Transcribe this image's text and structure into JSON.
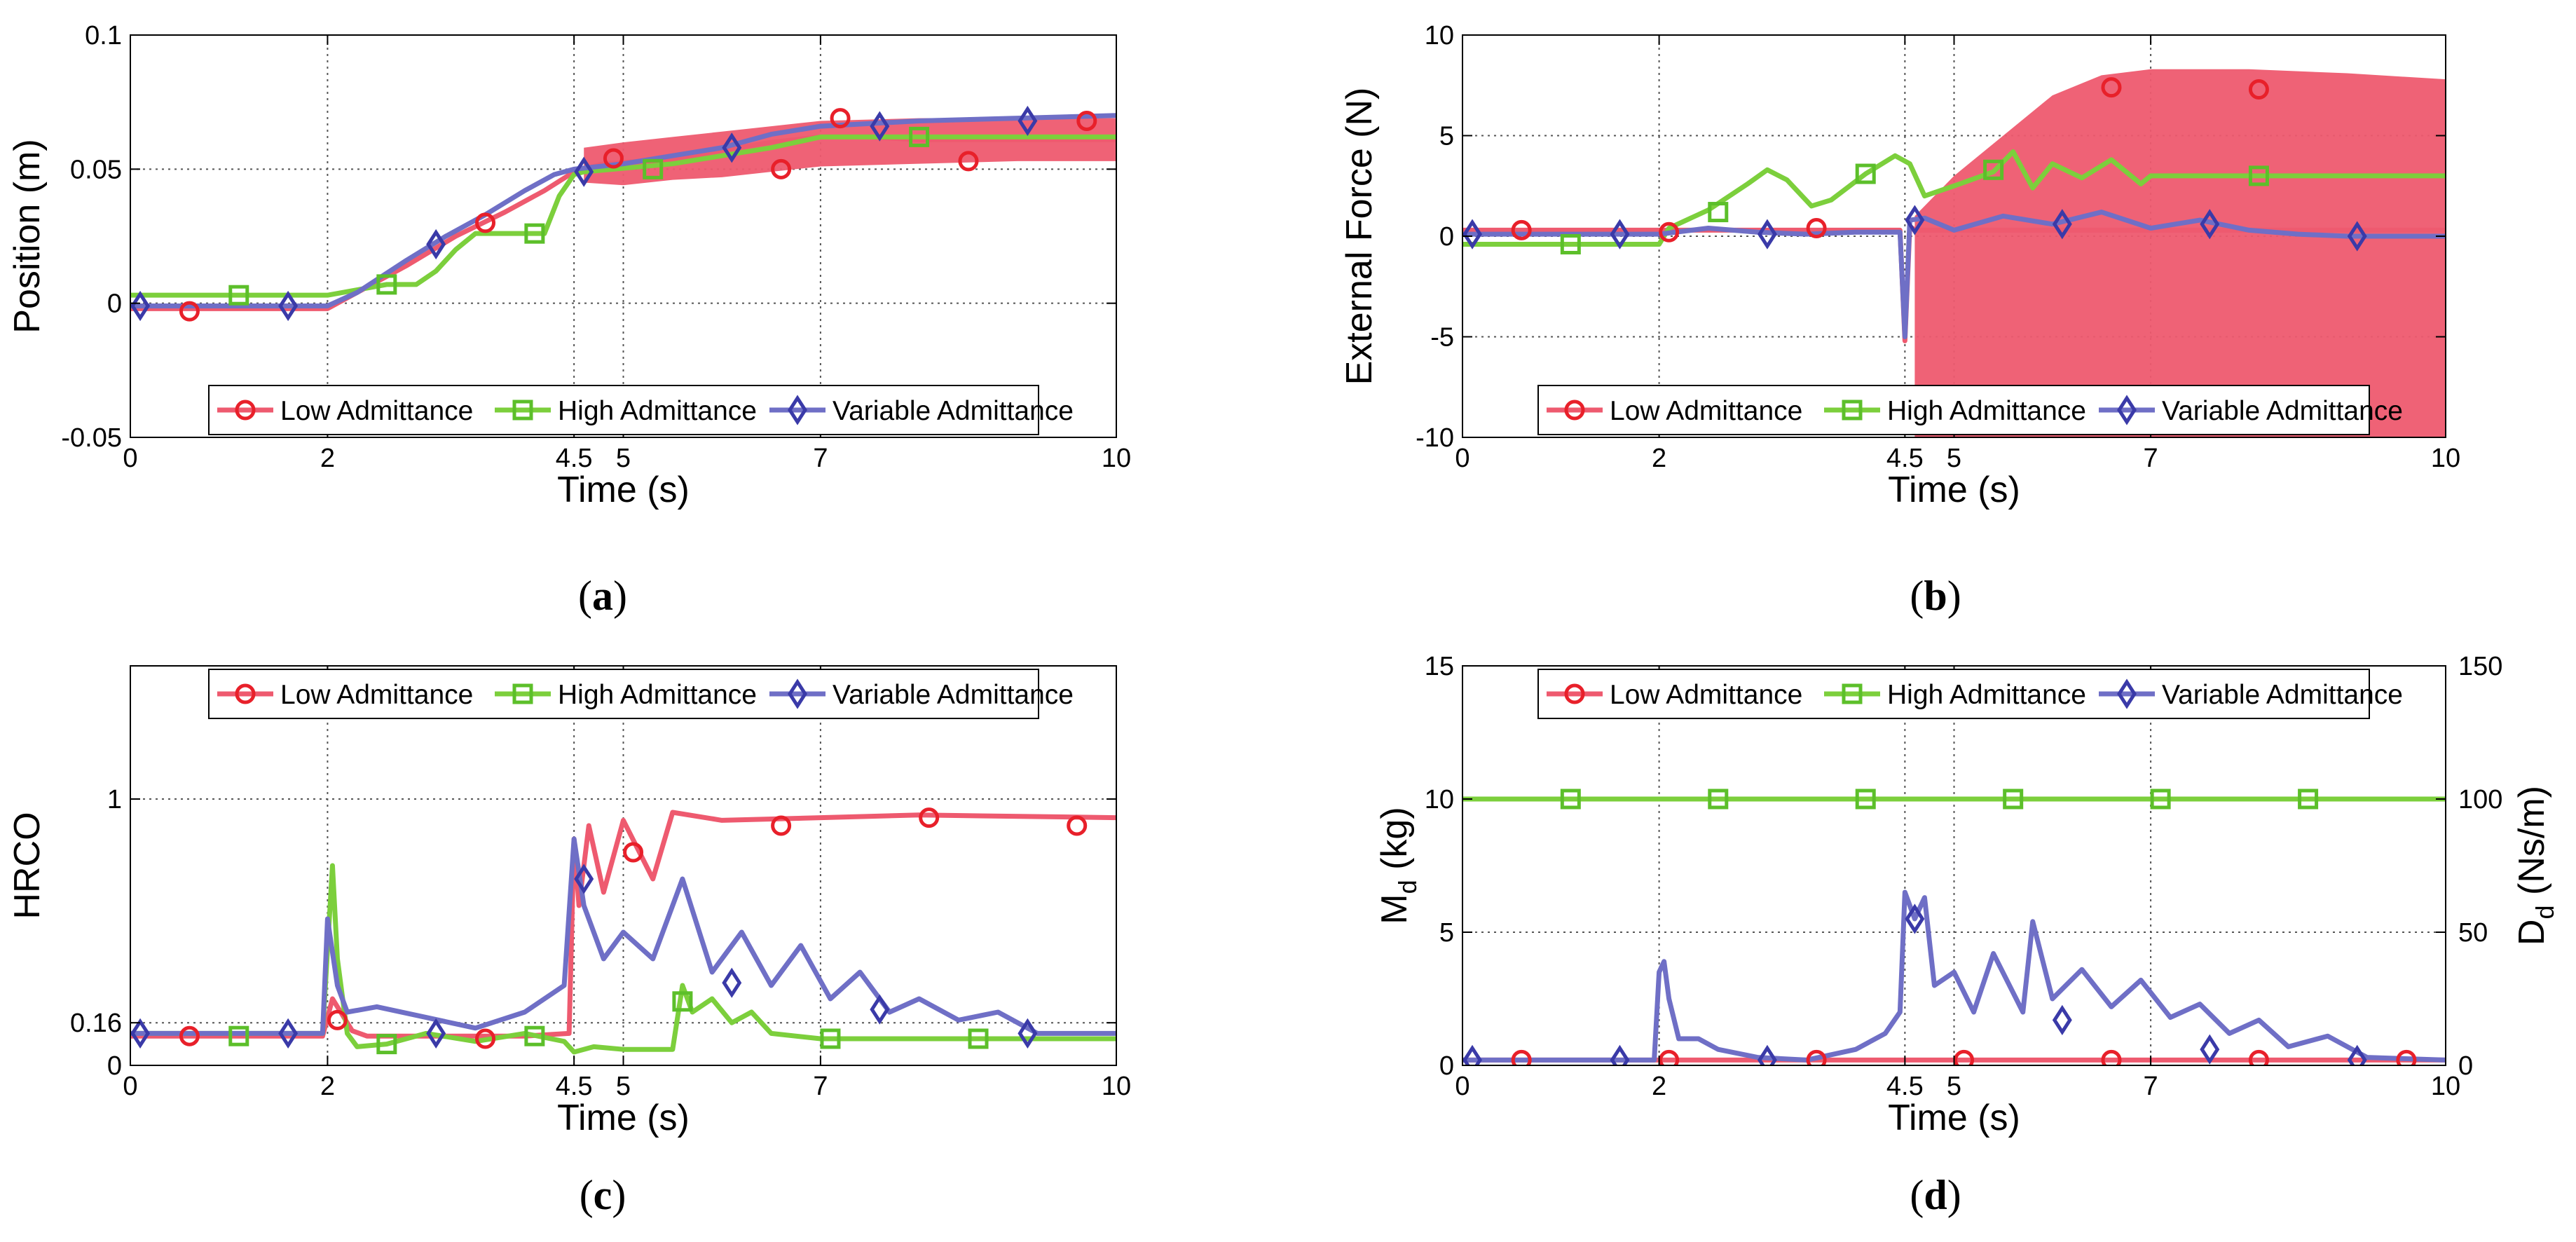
{
  "colors": {
    "low": "#ee5a6f",
    "low_marker": "#e8202a",
    "high": "#7ccf3c",
    "high_marker": "#5cbf2a",
    "variable": "#6f6fc6",
    "variable_marker": "#3a3aa8"
  },
  "chart_data": [
    {
      "id": "a",
      "caption_letter": "a",
      "type": "line",
      "xlabel": "Time (s)",
      "ylabel": "Position (m)",
      "xlim": [
        0,
        10
      ],
      "ylim": [
        -0.05,
        0.1
      ],
      "xticks": [
        0,
        2,
        4.5,
        5,
        7,
        10
      ],
      "xtick_labels": [
        "0",
        "2",
        "4.5",
        "5",
        "7",
        "10"
      ],
      "yticks": [
        -0.05,
        0,
        0.05,
        0.1
      ],
      "ytick_labels": [
        "-0.05",
        "0",
        "0.05",
        "0.1"
      ],
      "grid": true,
      "legend_position": "bottom",
      "series": [
        {
          "name": "Low Admittance",
          "key": "low",
          "marker": "circle",
          "x": [
            0,
            2,
            2.3,
            2.8,
            3.3,
            3.8,
            4.2,
            4.5,
            4.8,
            5.2,
            5.6,
            6.0,
            6.5,
            7.0,
            7.5,
            8.0,
            9.0,
            10
          ],
          "y": [
            -0.002,
            -0.002,
            0.004,
            0.014,
            0.025,
            0.034,
            0.042,
            0.049,
            0.052,
            0.053,
            0.054,
            0.057,
            0.06,
            0.062,
            0.062,
            0.061,
            0.061,
            0.061
          ],
          "band": [
            [
              4.6,
              0.045,
              0.058
            ],
            [
              5.0,
              0.044,
              0.06
            ],
            [
              5.5,
              0.046,
              0.062
            ],
            [
              6.0,
              0.047,
              0.064
            ],
            [
              6.5,
              0.049,
              0.066
            ],
            [
              7.0,
              0.051,
              0.068
            ],
            [
              8.0,
              0.052,
              0.069
            ],
            [
              9.0,
              0.053,
              0.069
            ],
            [
              10,
              0.053,
              0.069
            ]
          ],
          "markers_x": [
            0.6,
            3.6,
            4.9,
            6.6,
            7.2,
            8.5,
            9.7
          ],
          "markers_y": [
            -0.003,
            0.03,
            0.054,
            0.05,
            0.069,
            0.053,
            0.068
          ]
        },
        {
          "name": "High Admittance",
          "key": "high",
          "marker": "square",
          "x": [
            0,
            2,
            2.3,
            2.6,
            2.9,
            3.1,
            3.3,
            3.5,
            4.0,
            4.2,
            4.35,
            4.5,
            4.6,
            4.9,
            5.5,
            6.0,
            6.5,
            7.0,
            8.0,
            10
          ],
          "y": [
            0.003,
            0.003,
            0.005,
            0.007,
            0.007,
            0.012,
            0.02,
            0.026,
            0.026,
            0.026,
            0.04,
            0.048,
            0.049,
            0.05,
            0.052,
            0.055,
            0.058,
            0.062,
            0.062,
            0.062
          ],
          "markers_x": [
            1.1,
            2.6,
            4.1,
            5.3,
            8.0
          ],
          "markers_y": [
            0.003,
            0.007,
            0.026,
            0.05,
            0.062
          ]
        },
        {
          "name": "Variable Admittance",
          "key": "variable",
          "marker": "diamond",
          "x": [
            0,
            2,
            2.3,
            2.8,
            3.2,
            3.6,
            4.0,
            4.3,
            4.5,
            5.0,
            5.5,
            6.0,
            6.5,
            7.0,
            8.0,
            9.0,
            10
          ],
          "y": [
            -0.001,
            -0.001,
            0.004,
            0.016,
            0.025,
            0.033,
            0.042,
            0.048,
            0.05,
            0.052,
            0.055,
            0.058,
            0.063,
            0.066,
            0.068,
            0.069,
            0.07
          ],
          "markers_x": [
            0.1,
            1.6,
            3.1,
            4.6,
            6.1,
            7.6,
            9.1
          ],
          "markers_y": [
            -0.001,
            -0.001,
            0.022,
            0.049,
            0.058,
            0.066,
            0.068
          ]
        }
      ]
    },
    {
      "id": "b",
      "caption_letter": "b",
      "type": "line",
      "xlabel": "Time (s)",
      "ylabel": "External Force (N)",
      "xlim": [
        0,
        10
      ],
      "ylim": [
        -10,
        10
      ],
      "xticks": [
        0,
        2,
        4.5,
        5,
        7,
        10
      ],
      "xtick_labels": [
        "0",
        "2",
        "4.5",
        "5",
        "7",
        "10"
      ],
      "yticks": [
        -10,
        -5,
        0,
        5,
        10
      ],
      "ytick_labels": [
        "-10",
        "-5",
        "0",
        "5",
        "10"
      ],
      "grid": true,
      "legend_position": "bottom",
      "series": [
        {
          "name": "Low Admittance",
          "key": "low",
          "marker": "circle",
          "x": [
            0,
            2,
            4.45,
            4.5,
            4.55,
            4.6,
            10
          ],
          "y": [
            0.3,
            0.3,
            0.3,
            -5.2,
            0.5,
            0.3,
            0.3
          ],
          "band": [
            [
              4.6,
              -10,
              1.0
            ],
            [
              5.0,
              -10,
              3.0
            ],
            [
              5.5,
              -10,
              5.0
            ],
            [
              6.0,
              -10,
              7.0
            ],
            [
              6.5,
              -10,
              8.0
            ],
            [
              7.0,
              -10,
              8.3
            ],
            [
              8.0,
              -10,
              8.3
            ],
            [
              9.0,
              -10,
              8.1
            ],
            [
              10,
              -10,
              7.8
            ]
          ],
          "markers_x": [
            0.6,
            2.1,
            3.6,
            6.6,
            8.1
          ],
          "markers_y": [
            0.3,
            0.2,
            0.4,
            7.4,
            7.3
          ]
        },
        {
          "name": "High Admittance",
          "key": "high",
          "marker": "square",
          "x": [
            0,
            2,
            2.1,
            2.5,
            2.9,
            3.1,
            3.3,
            3.55,
            3.75,
            4.1,
            4.4,
            4.55,
            4.7,
            5.0,
            5.4,
            5.6,
            5.8,
            6.0,
            6.3,
            6.6,
            6.9,
            7.0,
            10
          ],
          "y": [
            -0.4,
            -0.4,
            0.4,
            1.3,
            2.6,
            3.3,
            2.8,
            1.5,
            1.8,
            3.1,
            4.0,
            3.6,
            2.0,
            2.5,
            3.2,
            4.2,
            2.4,
            3.6,
            2.9,
            3.8,
            2.6,
            3.0,
            3.0
          ],
          "markers_x": [
            1.1,
            2.6,
            4.1,
            5.4,
            8.1
          ],
          "markers_y": [
            -0.4,
            1.2,
            3.1,
            3.3,
            3.0
          ]
        },
        {
          "name": "Variable Admittance",
          "key": "variable",
          "marker": "diamond",
          "x": [
            0,
            2,
            2.5,
            3.0,
            3.5,
            4.0,
            4.45,
            4.5,
            4.55,
            4.7,
            5.0,
            5.5,
            6.0,
            6.5,
            7.0,
            7.5,
            8.0,
            8.5,
            9.0,
            10
          ],
          "y": [
            0.1,
            0.1,
            0.4,
            0.2,
            0.1,
            0.2,
            0.2,
            -5.0,
            0.8,
            0.9,
            0.3,
            1.0,
            0.6,
            1.2,
            0.4,
            0.8,
            0.3,
            0.1,
            0.0,
            0.0
          ],
          "markers_x": [
            0.1,
            1.6,
            3.1,
            4.6,
            6.1,
            7.6,
            9.1
          ],
          "markers_y": [
            0.1,
            0.1,
            0.1,
            0.8,
            0.6,
            0.6,
            0.0
          ]
        }
      ]
    },
    {
      "id": "c",
      "caption_letter": "c",
      "type": "line",
      "xlabel": "Time (s)",
      "ylabel": "HRCO",
      "xlim": [
        0,
        10
      ],
      "ylim": [
        0,
        1.5
      ],
      "xticks": [
        0,
        2,
        4.5,
        5,
        7,
        10
      ],
      "xtick_labels": [
        "0",
        "2",
        "4.5",
        "5",
        "7",
        "10"
      ],
      "yticks": [
        0,
        0.16,
        1
      ],
      "ytick_labels": [
        "0",
        "0.16",
        "1"
      ],
      "grid": true,
      "legend_position": "top",
      "series": [
        {
          "name": "Low Admittance",
          "key": "low",
          "marker": "circle",
          "x": [
            0,
            1.95,
            2.05,
            2.15,
            2.25,
            2.4,
            3.0,
            3.5,
            4.0,
            4.45,
            4.5,
            4.55,
            4.65,
            4.8,
            5.0,
            5.3,
            5.5,
            6.0,
            7.0,
            8.0,
            10
          ],
          "y": [
            0.11,
            0.11,
            0.25,
            0.19,
            0.13,
            0.11,
            0.11,
            0.11,
            0.11,
            0.12,
            0.85,
            0.6,
            0.9,
            0.65,
            0.92,
            0.7,
            0.95,
            0.92,
            0.93,
            0.94,
            0.93
          ],
          "markers_x": [
            0.6,
            2.1,
            3.6,
            5.1,
            6.6,
            8.1,
            9.6
          ],
          "markers_y": [
            0.11,
            0.17,
            0.1,
            0.8,
            0.9,
            0.93,
            0.9
          ]
        },
        {
          "name": "High Admittance",
          "key": "high",
          "marker": "square",
          "x": [
            0,
            1.95,
            2.05,
            2.1,
            2.2,
            2.3,
            2.6,
            3.0,
            3.5,
            4.0,
            4.4,
            4.5,
            4.7,
            5.0,
            5.5,
            5.6,
            5.7,
            5.9,
            6.1,
            6.3,
            6.5,
            7.0,
            7.5,
            8.0,
            10
          ],
          "y": [
            0.12,
            0.12,
            0.75,
            0.4,
            0.12,
            0.07,
            0.08,
            0.12,
            0.09,
            0.12,
            0.09,
            0.05,
            0.07,
            0.06,
            0.06,
            0.3,
            0.2,
            0.25,
            0.16,
            0.2,
            0.12,
            0.1,
            0.1,
            0.1,
            0.1
          ],
          "markers_x": [
            1.1,
            2.6,
            4.1,
            5.6,
            7.1,
            8.6
          ],
          "markers_y": [
            0.11,
            0.08,
            0.11,
            0.24,
            0.1,
            0.1
          ]
        },
        {
          "name": "Variable Admittance",
          "key": "variable",
          "marker": "diamond",
          "x": [
            0,
            1.95,
            2.0,
            2.1,
            2.2,
            2.5,
            3.0,
            3.5,
            4.0,
            4.4,
            4.5,
            4.6,
            4.8,
            5.0,
            5.3,
            5.6,
            5.9,
            6.2,
            6.5,
            6.8,
            7.1,
            7.4,
            7.7,
            8.0,
            8.4,
            8.8,
            9.2,
            10
          ],
          "y": [
            0.12,
            0.12,
            0.55,
            0.3,
            0.2,
            0.22,
            0.18,
            0.14,
            0.2,
            0.3,
            0.85,
            0.6,
            0.4,
            0.5,
            0.4,
            0.7,
            0.35,
            0.5,
            0.3,
            0.45,
            0.25,
            0.35,
            0.2,
            0.25,
            0.17,
            0.2,
            0.12,
            0.12
          ],
          "markers_x": [
            0.1,
            1.6,
            3.1,
            4.6,
            6.1,
            7.6,
            9.1
          ],
          "markers_y": [
            0.12,
            0.12,
            0.12,
            0.7,
            0.31,
            0.21,
            0.12
          ]
        }
      ]
    },
    {
      "id": "d",
      "caption_letter": "d",
      "type": "line",
      "xlabel": "Time (s)",
      "ylabel_main": "M",
      "ylabel_sub": "d",
      "ylabel_unit": " (kg)",
      "ylabel_right_main": "D",
      "ylabel_right_sub": "d",
      "ylabel_right_unit": " (Ns/m)",
      "xlim": [
        0,
        10
      ],
      "ylim": [
        0,
        15
      ],
      "ylim_right": [
        0,
        150
      ],
      "xticks": [
        0,
        2,
        4.5,
        5,
        7,
        10
      ],
      "xtick_labels": [
        "0",
        "2",
        "4.5",
        "5",
        "7",
        "10"
      ],
      "yticks": [
        0,
        5,
        10,
        15
      ],
      "ytick_labels": [
        "0",
        "5",
        "10",
        "15"
      ],
      "yticks_right": [
        0,
        50,
        100,
        150
      ],
      "ytick_labels_right": [
        "0",
        "50",
        "100",
        "150"
      ],
      "grid": true,
      "legend_position": "top",
      "series": [
        {
          "name": "Low Admittance",
          "key": "low",
          "marker": "circle",
          "x": [
            0,
            10
          ],
          "y": [
            0.2,
            0.2
          ],
          "markers_x": [
            0.6,
            2.1,
            3.6,
            5.1,
            6.6,
            8.1,
            9.6
          ],
          "markers_y": [
            0.2,
            0.2,
            0.2,
            0.2,
            0.2,
            0.2,
            0.2
          ]
        },
        {
          "name": "High Admittance",
          "key": "high",
          "marker": "square",
          "x": [
            0,
            10
          ],
          "y": [
            10,
            10
          ],
          "markers_x": [
            1.1,
            2.6,
            4.1,
            5.6,
            7.1,
            8.6
          ],
          "markers_y": [
            10,
            10,
            10,
            10,
            10,
            10
          ]
        },
        {
          "name": "Variable Admittance",
          "key": "variable",
          "marker": "diamond",
          "x": [
            0,
            1.95,
            2.0,
            2.05,
            2.1,
            2.2,
            2.4,
            2.6,
            3.0,
            3.5,
            4.0,
            4.3,
            4.45,
            4.5,
            4.6,
            4.7,
            4.8,
            5.0,
            5.2,
            5.4,
            5.7,
            5.8,
            6.0,
            6.3,
            6.6,
            6.9,
            7.2,
            7.5,
            7.8,
            8.1,
            8.4,
            8.8,
            9.2,
            10
          ],
          "y": [
            0.2,
            0.2,
            3.5,
            3.9,
            2.5,
            1.0,
            1.0,
            0.6,
            0.3,
            0.2,
            0.6,
            1.2,
            2.0,
            6.5,
            5.5,
            6.3,
            3.0,
            3.5,
            2.0,
            4.2,
            2.0,
            5.4,
            2.5,
            3.6,
            2.2,
            3.2,
            1.8,
            2.3,
            1.2,
            1.7,
            0.7,
            1.1,
            0.3,
            0.2
          ],
          "markers_x": [
            0.1,
            1.6,
            3.1,
            4.6,
            6.1,
            7.6,
            9.1
          ],
          "markers_y": [
            0.2,
            0.2,
            0.2,
            5.5,
            1.7,
            0.6,
            0.2
          ]
        }
      ]
    }
  ]
}
